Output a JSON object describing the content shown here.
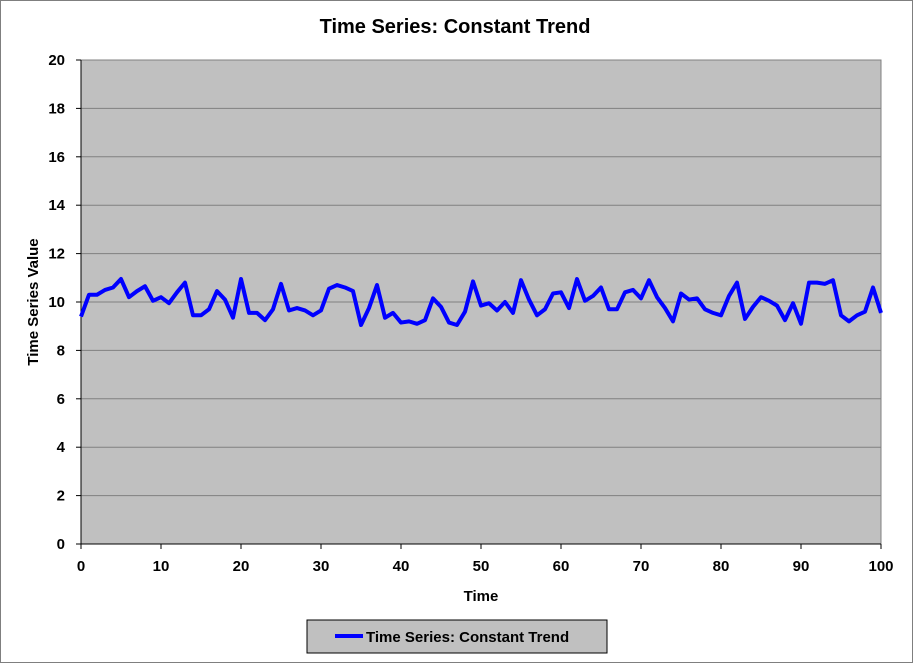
{
  "chart_data": {
    "type": "line",
    "title": "Time Series: Constant Trend",
    "xlabel": "Time",
    "ylabel": "Time Series Value",
    "xlim": [
      0,
      100
    ],
    "ylim": [
      0,
      20
    ],
    "xticks": [
      0,
      10,
      20,
      30,
      40,
      50,
      60,
      70,
      80,
      90,
      100
    ],
    "yticks": [
      0,
      2,
      4,
      6,
      8,
      10,
      12,
      14,
      16,
      18,
      20
    ],
    "grid": true,
    "legend_position": "bottom",
    "colors": {
      "line": "#0000ff",
      "plot_background": "#c0c0c0",
      "gridline": "#808080"
    },
    "series": [
      {
        "name": "Time Series: Constant Trend",
        "x": [
          0,
          1,
          2,
          3,
          4,
          5,
          6,
          7,
          8,
          9,
          10,
          11,
          12,
          13,
          14,
          15,
          16,
          17,
          18,
          19,
          20,
          21,
          22,
          23,
          24,
          25,
          26,
          27,
          28,
          29,
          30,
          31,
          32,
          33,
          34,
          35,
          36,
          37,
          38,
          39,
          40,
          41,
          42,
          43,
          44,
          45,
          46,
          47,
          48,
          49,
          50,
          51,
          52,
          53,
          54,
          55,
          56,
          57,
          58,
          59,
          60,
          61,
          62,
          63,
          64,
          65,
          66,
          67,
          68,
          69,
          70,
          71,
          72,
          73,
          74,
          75,
          76,
          77,
          78,
          79,
          80,
          81,
          82,
          83,
          84,
          85,
          86,
          87,
          88,
          89,
          90,
          91,
          92,
          93,
          94,
          95,
          96,
          97,
          98,
          99,
          100
        ],
        "values": [
          9.4,
          10.3,
          10.3,
          10.5,
          10.6,
          10.95,
          10.2,
          10.45,
          10.65,
          10.05,
          10.2,
          9.95,
          10.4,
          10.8,
          9.45,
          9.45,
          9.7,
          10.45,
          10.1,
          9.35,
          10.95,
          9.55,
          9.55,
          9.25,
          9.7,
          10.75,
          9.65,
          9.75,
          9.65,
          9.45,
          9.65,
          10.55,
          10.7,
          10.6,
          10.45,
          9.05,
          9.75,
          10.7,
          9.35,
          9.55,
          9.15,
          9.2,
          9.1,
          9.25,
          10.15,
          9.8,
          9.15,
          9.05,
          9.6,
          10.85,
          9.85,
          9.95,
          9.65,
          10.0,
          9.55,
          10.9,
          10.1,
          9.45,
          9.7,
          10.35,
          10.4,
          9.75,
          10.95,
          10.05,
          10.25,
          10.6,
          9.7,
          9.7,
          10.4,
          10.5,
          10.15,
          10.9,
          10.2,
          9.75,
          9.2,
          10.35,
          10.1,
          10.15,
          9.7,
          9.55,
          9.45,
          10.25,
          10.8,
          9.3,
          9.8,
          10.2,
          10.05,
          9.85,
          9.25,
          9.95,
          9.1,
          10.8,
          10.8,
          10.75,
          10.9,
          9.45,
          9.2,
          9.45,
          9.6,
          10.6,
          9.55
        ]
      }
    ]
  }
}
